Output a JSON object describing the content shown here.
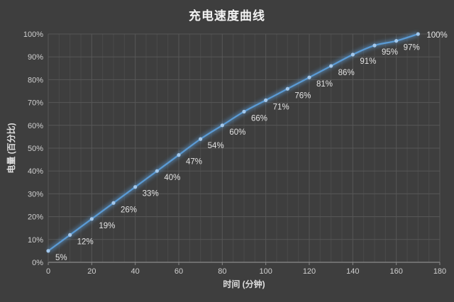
{
  "chart_data": {
    "type": "line",
    "title": "充电速度曲线",
    "xlabel": "时间 (分钟)",
    "ylabel": "电量 (百分比)",
    "x": [
      0,
      10,
      20,
      30,
      40,
      50,
      60,
      70,
      80,
      90,
      100,
      110,
      120,
      130,
      140,
      150,
      160,
      170
    ],
    "values": [
      5,
      12,
      19,
      26,
      33,
      40,
      47,
      54,
      60,
      66,
      71,
      76,
      81,
      86,
      91,
      95,
      97,
      100
    ],
    "point_labels": [
      "5%",
      "12%",
      "19%",
      "26%",
      "33%",
      "40%",
      "47%",
      "54%",
      "60%",
      "66%",
      "71%",
      "76%",
      "81%",
      "86%",
      "91%",
      "95%",
      "97%",
      "100%"
    ],
    "x_ticks": [
      0,
      20,
      40,
      60,
      80,
      100,
      120,
      140,
      160,
      180
    ],
    "y_tick_labels": [
      "0%",
      "10%",
      "20%",
      "30%",
      "40%",
      "50%",
      "60%",
      "70%",
      "80%",
      "90%",
      "100%"
    ],
    "xlim": [
      0,
      180
    ],
    "ylim": [
      0,
      100
    ],
    "grid": true,
    "legend": "none",
    "smooth_line": true,
    "colors": {
      "background": "#3e3e3e",
      "line": "#5b9bd5",
      "marker": "#a3c8ec",
      "grid_major": "#575757",
      "grid_minor": "#4a4a4a",
      "axis_line": "#8a8a8a",
      "tick_text": "#d0d0d0",
      "label_text": "#e3e3e3",
      "title_text": "#f2f2f2"
    }
  }
}
